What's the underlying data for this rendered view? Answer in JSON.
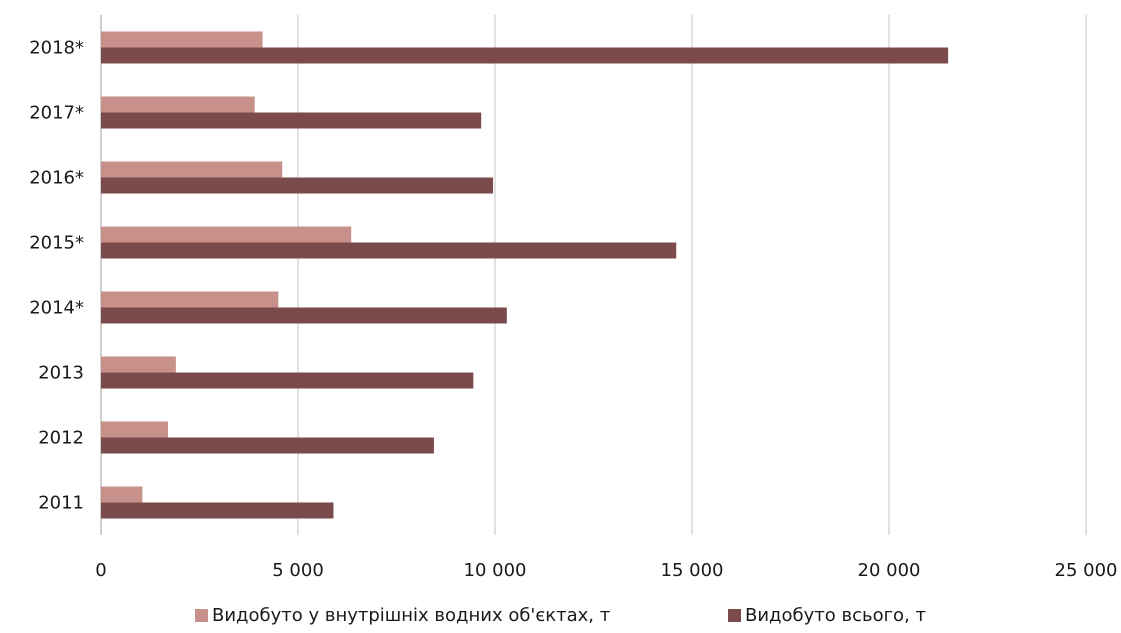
{
  "chart_data": {
    "type": "bar",
    "orientation": "horizontal",
    "categories": [
      "2011",
      "2012",
      "2013",
      "2014*",
      "2015*",
      "2016*",
      "2017*",
      "2018*"
    ],
    "series": [
      {
        "name": "Видобуто у внутрішніх водних об'єктах, т",
        "color": "#c8908a",
        "values": [
          1050,
          1700,
          1900,
          4500,
          6350,
          4600,
          3900,
          4100
        ]
      },
      {
        "name": "Видобуто всього, т",
        "color": "#7b4a4b",
        "values": [
          5900,
          8450,
          9450,
          10300,
          14600,
          9950,
          9650,
          21500
        ]
      }
    ],
    "xlim": [
      0,
      25000
    ],
    "xticks": [
      0,
      5000,
      10000,
      15000,
      20000,
      25000
    ],
    "xtick_labels": [
      "0",
      "5 000",
      "10 000",
      "15 000",
      "20 000",
      "25 000"
    ],
    "grid": "vertical",
    "legend_position": "bottom",
    "title": "",
    "xlabel": "",
    "ylabel": ""
  }
}
